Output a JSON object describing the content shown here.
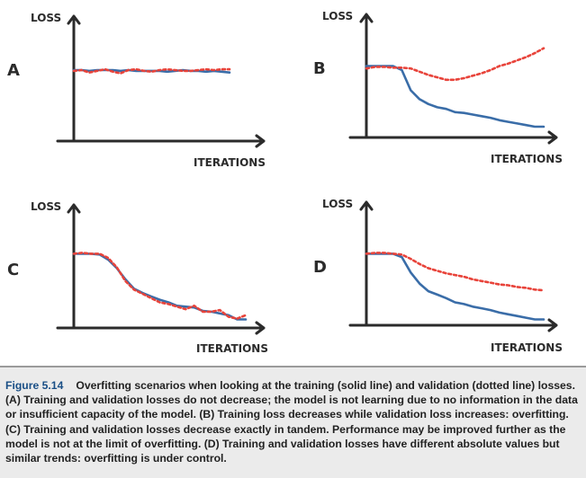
{
  "colors": {
    "axis": "#2b2b2b",
    "training": "#3a6da8",
    "validation": "#e8433a",
    "caption_bg": "#ebebeb",
    "caption_label": "#1a4f86"
  },
  "chart_data": [
    {
      "type": "line",
      "panel": "A",
      "xlabel": "ITERATIONS",
      "ylabel": "LOSS",
      "ylim": [
        0,
        100
      ],
      "series": [
        {
          "name": "training",
          "style": "solid",
          "values": [
            80,
            80,
            79,
            80,
            80,
            80,
            79,
            80,
            79,
            79,
            79,
            79,
            78,
            79,
            80,
            79,
            79,
            78,
            79,
            78,
            77
          ]
        },
        {
          "name": "validation",
          "style": "dotted",
          "values": [
            79,
            80,
            77,
            79,
            81,
            78,
            76,
            80,
            81,
            79,
            78,
            80,
            81,
            80,
            79,
            79,
            80,
            81,
            80,
            81,
            81
          ]
        }
      ]
    },
    {
      "type": "line",
      "panel": "B",
      "xlabel": "ITERATIONS",
      "ylabel": "LOSS",
      "ylim": [
        0,
        100
      ],
      "series": [
        {
          "name": "training",
          "style": "solid",
          "values": [
            85,
            85,
            85,
            85,
            80,
            55,
            44,
            38,
            34,
            32,
            28,
            27,
            25,
            23,
            21,
            18,
            16,
            14,
            12,
            10,
            10
          ]
        },
        {
          "name": "validation",
          "style": "dotted",
          "values": [
            82,
            84,
            84,
            83,
            83,
            82,
            78,
            74,
            71,
            68,
            68,
            70,
            73,
            76,
            80,
            85,
            88,
            92,
            96,
            101,
            107
          ]
        }
      ]
    },
    {
      "type": "line",
      "panel": "C",
      "xlabel": "ITERATIONS",
      "ylabel": "LOSS",
      "ylim": [
        0,
        100
      ],
      "series": [
        {
          "name": "training",
          "style": "solid",
          "values": [
            87,
            87,
            87,
            86,
            80,
            70,
            57,
            46,
            41,
            37,
            33,
            30,
            26,
            25,
            24,
            20,
            19,
            17,
            15,
            10,
            10
          ]
        },
        {
          "name": "validation",
          "style": "dotted",
          "values": [
            87,
            88,
            87,
            87,
            82,
            71,
            55,
            45,
            40,
            35,
            30,
            28,
            25,
            22,
            26,
            19,
            19,
            21,
            13,
            11,
            15
          ]
        }
      ]
    },
    {
      "type": "line",
      "panel": "D",
      "xlabel": "ITERATIONS",
      "ylabel": "LOSS",
      "ylim": [
        0,
        100
      ],
      "series": [
        {
          "name": "training",
          "style": "solid",
          "values": [
            87,
            87,
            87,
            87,
            83,
            65,
            52,
            43,
            39,
            35,
            30,
            28,
            25,
            23,
            21,
            18,
            16,
            14,
            12,
            10,
            10
          ]
        },
        {
          "name": "validation",
          "style": "dotted",
          "values": [
            87,
            88,
            88,
            87,
            86,
            81,
            75,
            70,
            67,
            64,
            62,
            60,
            57,
            55,
            53,
            51,
            50,
            48,
            47,
            45,
            44
          ]
        }
      ]
    }
  ],
  "caption": {
    "label": "Figure 5.14",
    "text": "Overfitting scenarios when looking at the training (solid line) and validation (dotted line) losses. (A) Training and validation losses do not decrease; the model is not learning due to no information in the data or insufficient capacity of the model. (B) Training loss decreases while validation loss increases: overfitting. (C) Training and validation losses decrease exactly in tandem. Performance may be improved further as the model is not at the limit of overfitting. (D) Training and validation losses have different absolute values but similar trends: overfitting is under control."
  }
}
